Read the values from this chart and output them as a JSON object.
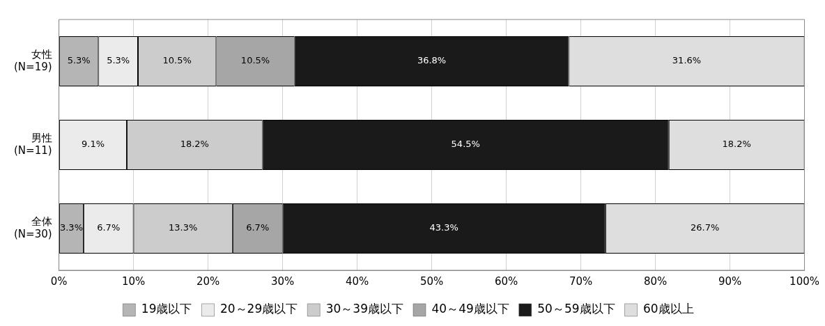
{
  "chart_data": {
    "type": "bar",
    "orientation": "horizontal",
    "stacked": true,
    "categories": [
      "女性\n(N=19)",
      "男性\n(N=11)",
      "全体\n(N=30)"
    ],
    "series": [
      {
        "name": "19歳以下",
        "color": "#b5b5b5",
        "values": [
          5.3,
          0,
          3.3
        ],
        "value_labels": [
          "5.3%",
          null,
          "3.3%"
        ]
      },
      {
        "name": "20～29歳以下",
        "color": "#ebebeb",
        "values": [
          5.3,
          9.1,
          6.7
        ],
        "value_labels": [
          "5.3%",
          "9.1%",
          "6.7%"
        ]
      },
      {
        "name": "30～39歳以下",
        "color": "#cccccc",
        "values": [
          10.5,
          18.2,
          13.3
        ],
        "value_labels": [
          "10.5%",
          "18.2%",
          "13.3%"
        ]
      },
      {
        "name": "40～49歳以下",
        "color": "#a6a6a6",
        "values": [
          10.5,
          0,
          6.7
        ],
        "value_labels": [
          "10.5%",
          null,
          "6.7%"
        ]
      },
      {
        "name": "50～59歳以下",
        "color": "#1a1a1a",
        "values": [
          36.8,
          54.5,
          43.3
        ],
        "value_labels": [
          "36.8%",
          "54.5%",
          "43.3%"
        ]
      },
      {
        "name": "60歳以上",
        "color": "#dedede",
        "values": [
          31.6,
          18.2,
          26.7
        ],
        "value_labels": [
          "31.6%",
          "18.2%",
          "26.7%"
        ]
      }
    ],
    "xlim": [
      0,
      100
    ],
    "xticks": [
      {
        "value": 0,
        "label": "0%"
      },
      {
        "value": 10,
        "label": "10%"
      },
      {
        "value": 20,
        "label": "20%"
      },
      {
        "value": 30,
        "label": "30%"
      },
      {
        "value": 40,
        "label": "40%"
      },
      {
        "value": 50,
        "label": "50%"
      },
      {
        "value": 60,
        "label": "60%"
      },
      {
        "value": 70,
        "label": "70%"
      },
      {
        "value": 80,
        "label": "80%"
      },
      {
        "value": 90,
        "label": "90%"
      },
      {
        "value": 100,
        "label": "100%"
      }
    ],
    "grid": "x",
    "legend": "bottom"
  }
}
